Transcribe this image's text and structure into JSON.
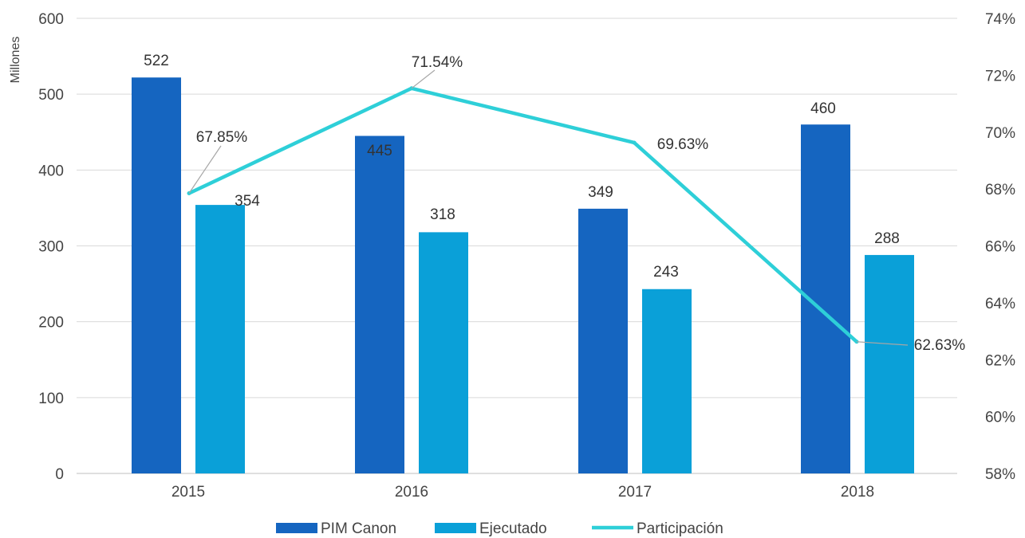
{
  "chart_data": {
    "type": "bar",
    "categories": [
      "2015",
      "2016",
      "2017",
      "2018"
    ],
    "ylabel": "Millones",
    "ylim": [
      0,
      600
    ],
    "yticks": [
      "0",
      "100",
      "200",
      "300",
      "400",
      "500",
      "600"
    ],
    "y2lim": [
      58,
      74
    ],
    "y2ticks": [
      "58%",
      "60%",
      "62%",
      "64%",
      "66%",
      "68%",
      "70%",
      "72%",
      "74%"
    ],
    "grid": true,
    "legend_position": "bottom",
    "series": [
      {
        "name": "PIM Canon",
        "type": "bar",
        "axis": "left",
        "color": "#1565c0",
        "values": [
          522,
          445,
          349,
          460
        ],
        "labels": [
          "522",
          "445",
          "349",
          "460"
        ]
      },
      {
        "name": "Ejecutado",
        "type": "bar",
        "axis": "left",
        "color": "#0aa0d8",
        "values": [
          354,
          318,
          243,
          288
        ],
        "labels": [
          "354",
          "318",
          "243",
          "288"
        ]
      },
      {
        "name": "Participación",
        "type": "line",
        "axis": "right",
        "color": "#2ecfd8",
        "values": [
          67.85,
          71.54,
          69.63,
          62.63
        ],
        "labels": [
          "67.85%",
          "71.54%",
          "69.63%",
          "62.63%"
        ]
      }
    ]
  }
}
